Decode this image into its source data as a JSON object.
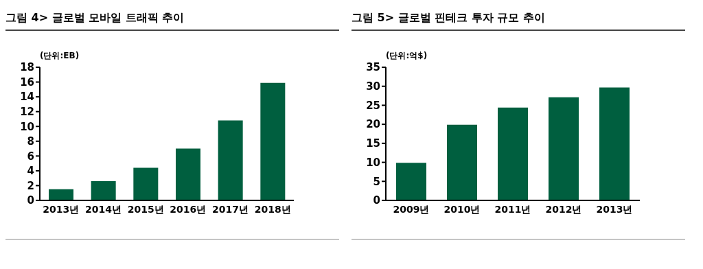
{
  "chart_data": [
    {
      "type": "bar",
      "title": "그림 4> 글로벌 모바일 트래픽 추이",
      "ylabel": "(단위:EB)",
      "categories": [
        "2013년",
        "2014년",
        "2015년",
        "2016년",
        "2017년",
        "2018년"
      ],
      "values": [
        1.5,
        2.6,
        4.4,
        7.0,
        10.8,
        15.9
      ],
      "color": "#005f3f",
      "ylim": [
        0,
        18
      ],
      "yticks": [
        0,
        2,
        4,
        6,
        8,
        10,
        12,
        14,
        16,
        18
      ],
      "grid": false,
      "legend": false
    },
    {
      "type": "bar",
      "title": "그림 5> 글로벌 핀테크 투자 규모 추이",
      "ylabel": "(단위:억$)",
      "categories": [
        "2009년",
        "2010년",
        "2011년",
        "2012년",
        "2013년"
      ],
      "values": [
        9.9,
        19.9,
        24.4,
        27.1,
        29.7
      ],
      "color": "#005f3f",
      "ylim": [
        0,
        35
      ],
      "yticks": [
        0,
        5,
        10,
        15,
        20,
        25,
        30,
        35
      ],
      "grid": false,
      "legend": false
    }
  ]
}
